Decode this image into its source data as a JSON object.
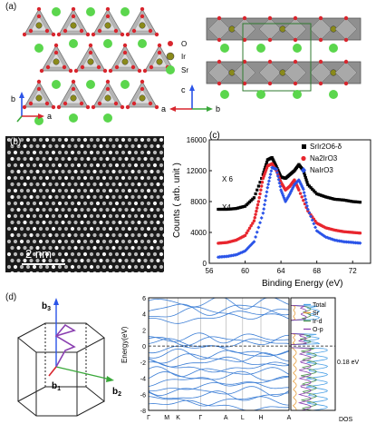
{
  "panel_a": {
    "label": "(a)",
    "legend": [
      {
        "symbol": "O",
        "color": "#d8262e"
      },
      {
        "symbol": "Ir",
        "color": "#8a8a1a"
      },
      {
        "symbol": "Sr",
        "color": "#5bd64d"
      }
    ],
    "axes_left": {
      "b": "b",
      "a": "a"
    },
    "axes_right": {
      "c": "c",
      "a": "a",
      "b": "b"
    }
  },
  "panel_b": {
    "label": "(b)",
    "scale_bar": "2 nm"
  },
  "chart_data": [
    {
      "panel": "(c)",
      "type": "scatter",
      "xlabel": "Binding Energy (eV)",
      "ylabel": "Counts ( arb. unit )",
      "xlim": [
        56,
        74
      ],
      "ylim": [
        0,
        16000
      ],
      "xticks": [
        "56",
        "60",
        "64",
        "68",
        "72"
      ],
      "yticks": [
        "0",
        "4000",
        "8000",
        "12000",
        "16000"
      ],
      "annotations": [
        "X 6",
        "X4"
      ],
      "legend_position": "top-right",
      "series": [
        {
          "name": "SrIr2O6-δ",
          "color": "#000000",
          "x": [
            57,
            58,
            59,
            60,
            61,
            62,
            62.5,
            63,
            63.5,
            64,
            64.5,
            65,
            65.5,
            66,
            66.5,
            67,
            68,
            69,
            70,
            71,
            72,
            73
          ],
          "y": [
            7000,
            7000,
            7100,
            7400,
            8500,
            11500,
            13400,
            13700,
            12500,
            11200,
            11000,
            11500,
            12000,
            12800,
            12000,
            10200,
            9000,
            8600,
            8300,
            8200,
            8000,
            7900
          ]
        },
        {
          "name": "Na2IrO3",
          "color": "#e8262e",
          "x": [
            57,
            58,
            59,
            60,
            61,
            61.5,
            62,
            62.5,
            63,
            63.5,
            64,
            64.5,
            65,
            65.5,
            66,
            67,
            68,
            69,
            70,
            71,
            72,
            73
          ],
          "y": [
            2600,
            2700,
            3000,
            3600,
            5500,
            8000,
            11000,
            12600,
            12900,
            12000,
            10500,
            9500,
            10000,
            10800,
            9500,
            6800,
            5200,
            4600,
            4300,
            4100,
            4000,
            3900
          ]
        },
        {
          "name": "NaIrO3",
          "color": "#2b54e8",
          "x": [
            57,
            58,
            59,
            60,
            61,
            62,
            62.5,
            63,
            63.5,
            64,
            64.5,
            65,
            65.5,
            66,
            66.5,
            67,
            68,
            69,
            70,
            71,
            72,
            73
          ],
          "y": [
            800,
            900,
            1100,
            1600,
            2800,
            6500,
            9800,
            12400,
            12200,
            9500,
            8000,
            9000,
            10200,
            10800,
            9600,
            7000,
            4200,
            3400,
            3000,
            2800,
            2700,
            2600
          ]
        }
      ]
    },
    {
      "panel": "(d)",
      "type": "line",
      "ylabel": "Energy(eV)",
      "ylim": [
        -8,
        6
      ],
      "yticks": [
        "6",
        "4",
        "2",
        "0",
        "-2",
        "-4",
        "-6",
        "-8"
      ],
      "kpath": [
        "Γ",
        "M",
        "K",
        "Γ",
        "A",
        "L",
        "H",
        "A"
      ],
      "dos_xlabel": "DOS",
      "dos_legend": [
        "Total",
        "Sr",
        "Ir-d",
        "O-p"
      ],
      "dos_colors": [
        "#4aa0e6",
        "#e8a040",
        "#4d8f4d",
        "#8a3fb0"
      ],
      "gap_label": "0.18 eV"
    }
  ],
  "panel_d_bz": {
    "label": "(d)",
    "b1": "b",
    "b2": "b",
    "b3": "b",
    "sub1": "1",
    "sub2": "2",
    "sub3": "3"
  }
}
